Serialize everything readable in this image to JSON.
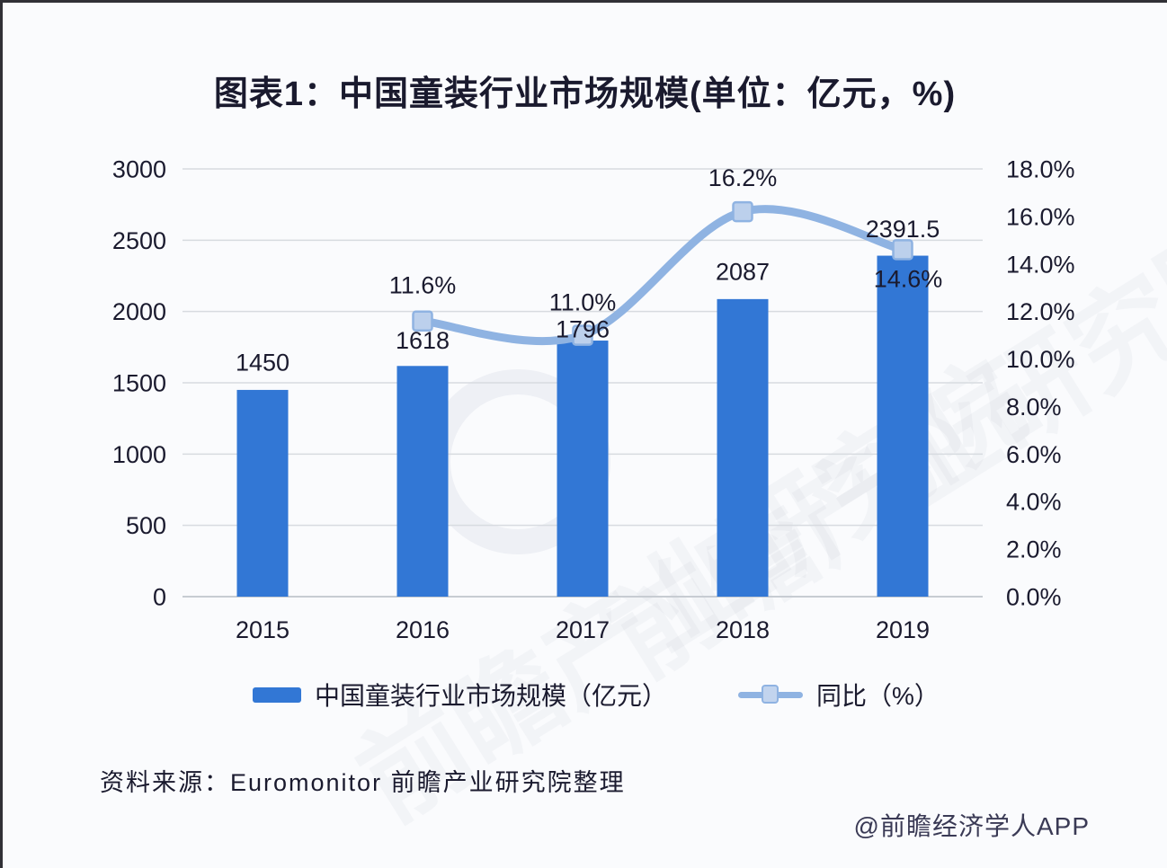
{
  "page": {
    "title": "图表1：中国童装行业市场规模(单位：亿元，%)",
    "source": "资料来源：Euromonitor 前瞻产业研究院整理",
    "credit": "@前瞻经济学人APP",
    "watermark": "前瞻产业研究院"
  },
  "colors": {
    "bar": "#3277d5",
    "line": "#8fb3e2",
    "marker_fill": "#bcd0ec",
    "marker_stroke": "#8fb3e2",
    "grid": "#d7dbe0",
    "axis": "#c7ccd2",
    "text": "#1a1a2e"
  },
  "chart_data": {
    "type": "bar+line",
    "title": "图表1：中国童装行业市场规模(单位：亿元，%)",
    "categories": [
      "2015",
      "2016",
      "2017",
      "2018",
      "2019"
    ],
    "series": [
      {
        "name": "中国童装行业市场规模（亿元）",
        "type": "bar",
        "axis": "left",
        "values": [
          1450,
          1618,
          1796,
          2087,
          2391.5
        ],
        "labels": [
          "1450",
          "1618",
          "1796",
          "2087",
          "2391.5"
        ]
      },
      {
        "name": "同比（%）",
        "type": "line",
        "axis": "right",
        "values": [
          null,
          11.6,
          11.0,
          16.2,
          14.6
        ],
        "labels": [
          "",
          "11.6%",
          "11.0%",
          "16.2%",
          "14.6%"
        ]
      }
    ],
    "left_axis": {
      "min": 0,
      "max": 3000,
      "step": 500,
      "ticks": [
        "3000",
        "2500",
        "2000",
        "1500",
        "1000",
        "500",
        "0"
      ]
    },
    "right_axis": {
      "min": 0,
      "max": 18,
      "step": 2,
      "ticks": [
        "18.0%",
        "16.0%",
        "14.0%",
        "12.0%",
        "10.0%",
        "8.0%",
        "6.0%",
        "4.0%",
        "2.0%",
        "0.0%"
      ]
    },
    "grid": true,
    "legend_position": "bottom"
  }
}
